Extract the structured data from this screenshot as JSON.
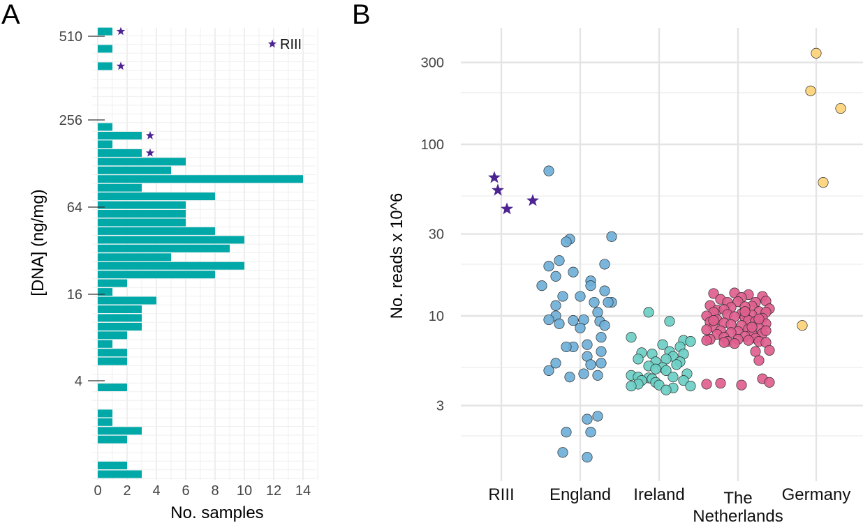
{
  "panels": {
    "a": "A",
    "b": "B"
  },
  "chart_data": [
    {
      "type": "bar",
      "orientation": "horizontal",
      "xlabel": "No. samples",
      "ylabel": "[DNA] (ng/mg)",
      "xlim": [
        0,
        15
      ],
      "x_ticks": [
        "0",
        "2",
        "4",
        "6",
        "8",
        "10",
        "12",
        "14"
      ],
      "y_ticks": [
        "4",
        "16",
        "64",
        "256",
        "510"
      ],
      "y_scale": "log2",
      "legend": {
        "label": "RIII",
        "symbol": "star",
        "color": "#4b2491",
        "placement": "top-right"
      },
      "bar_color": "#00a8a8",
      "bins": [
        {
          "rank": 0,
          "count": 3
        },
        {
          "rank": 1,
          "count": 2
        },
        {
          "rank": 4,
          "count": 2
        },
        {
          "rank": 5,
          "count": 3
        },
        {
          "rank": 6,
          "count": 1
        },
        {
          "rank": 7,
          "count": 1
        },
        {
          "rank": 10,
          "count": 2
        },
        {
          "rank": 13,
          "count": 2
        },
        {
          "rank": 14,
          "count": 2
        },
        {
          "rank": 15,
          "count": 1
        },
        {
          "rank": 16,
          "count": 2
        },
        {
          "rank": 17,
          "count": 3
        },
        {
          "rank": 18,
          "count": 3
        },
        {
          "rank": 19,
          "count": 3
        },
        {
          "rank": 20,
          "count": 4
        },
        {
          "rank": 21,
          "count": 1
        },
        {
          "rank": 22,
          "count": 2
        },
        {
          "rank": 23,
          "count": 8
        },
        {
          "rank": 24,
          "count": 10
        },
        {
          "rank": 25,
          "count": 5
        },
        {
          "rank": 26,
          "count": 9
        },
        {
          "rank": 27,
          "count": 10
        },
        {
          "rank": 28,
          "count": 8
        },
        {
          "rank": 29,
          "count": 6
        },
        {
          "rank": 30,
          "count": 6
        },
        {
          "rank": 31,
          "count": 6
        },
        {
          "rank": 32,
          "count": 8
        },
        {
          "rank": 33,
          "count": 3
        },
        {
          "rank": 34,
          "count": 14
        },
        {
          "rank": 35,
          "count": 5
        },
        {
          "rank": 36,
          "count": 6
        },
        {
          "rank": 37,
          "count": 3,
          "riii": true
        },
        {
          "rank": 38,
          "count": 1
        },
        {
          "rank": 39,
          "count": 3,
          "riii": true
        },
        {
          "rank": 40,
          "count": 1
        },
        {
          "rank": 47,
          "count": 1,
          "riii": true
        },
        {
          "rank": 49,
          "count": 1
        },
        {
          "rank": 51,
          "count": 1,
          "riii": true
        }
      ]
    },
    {
      "type": "scatter",
      "ylabel": "No. reads x 10^6",
      "y_scale": "log10",
      "y_ticks": [
        "3",
        "10",
        "30",
        "100",
        "300"
      ],
      "categories": [
        "RIII",
        "England",
        "Ireland",
        "The\nNetherlands",
        "Germany"
      ],
      "category_lines": [
        [
          "RIII"
        ],
        [
          "England"
        ],
        [
          "Ireland"
        ],
        [
          "The",
          "Netherlands"
        ],
        [
          "Germany"
        ]
      ],
      "series": [
        {
          "category": "RIII",
          "color": "#4b2491",
          "marker": "star",
          "points": [
            [
              -0.1,
              64
            ],
            [
              -0.05,
              54
            ],
            [
              0.08,
              42
            ],
            [
              0.45,
              47
            ]
          ]
        },
        {
          "category": "England",
          "color": "#6fb0d8",
          "marker": "circle",
          "points": [
            [
              -0.45,
              70
            ],
            [
              -0.15,
              28
            ],
            [
              0.45,
              29
            ],
            [
              -0.2,
              27
            ],
            [
              -0.3,
              21
            ],
            [
              0.35,
              20
            ],
            [
              -0.45,
              19.5
            ],
            [
              -0.1,
              18
            ],
            [
              -0.35,
              17
            ],
            [
              0.15,
              16
            ],
            [
              0.15,
              15
            ],
            [
              -0.55,
              15
            ],
            [
              0.35,
              14
            ],
            [
              -0.25,
              13
            ],
            [
              0.0,
              13
            ],
            [
              0.45,
              12
            ],
            [
              0.2,
              12
            ],
            [
              0.4,
              12
            ],
            [
              -0.35,
              11.5
            ],
            [
              0.25,
              10.5
            ],
            [
              -0.35,
              10
            ],
            [
              -0.45,
              9.5
            ],
            [
              0.05,
              9.5
            ],
            [
              -0.1,
              9.4
            ],
            [
              0.28,
              9.3
            ],
            [
              -0.3,
              9
            ],
            [
              0.35,
              8.8
            ],
            [
              0.0,
              8.5
            ],
            [
              0.3,
              7.5
            ],
            [
              0.1,
              6.8
            ],
            [
              -0.1,
              6.6
            ],
            [
              -0.2,
              6.6
            ],
            [
              0.3,
              6.2
            ],
            [
              0.1,
              5.8
            ],
            [
              0.3,
              5.3
            ],
            [
              -0.35,
              5.3
            ],
            [
              0.15,
              5.2
            ],
            [
              -0.45,
              4.8
            ],
            [
              0.05,
              4.6
            ],
            [
              0.25,
              4.5
            ],
            [
              -0.15,
              4.4
            ],
            [
              0.25,
              2.6
            ],
            [
              0.1,
              2.5
            ],
            [
              -0.2,
              2.1
            ],
            [
              0.15,
              2.1
            ],
            [
              -0.25,
              1.6
            ],
            [
              0.1,
              1.5
            ]
          ]
        },
        {
          "category": "Ireland",
          "color": "#6bcfc4",
          "marker": "circle",
          "points": [
            [
              -0.15,
              10.5
            ],
            [
              0.15,
              9.3
            ],
            [
              -0.4,
              7.5
            ],
            [
              0.35,
              7.2
            ],
            [
              0.45,
              7.1
            ],
            [
              0.05,
              6.8
            ],
            [
              0.3,
              6.6
            ],
            [
              -0.25,
              6.1
            ],
            [
              0.15,
              6.2
            ],
            [
              -0.1,
              6.0
            ],
            [
              0.35,
              6.0
            ],
            [
              0.2,
              5.8
            ],
            [
              -0.3,
              5.6
            ],
            [
              0.1,
              5.6
            ],
            [
              -0.05,
              5.4
            ],
            [
              0.3,
              5.4
            ],
            [
              0.25,
              5.2
            ],
            [
              -0.15,
              5.1
            ],
            [
              0.05,
              5.0
            ],
            [
              -0.05,
              4.9
            ],
            [
              0.1,
              4.8
            ],
            [
              0.4,
              4.6
            ],
            [
              -0.4,
              4.5
            ],
            [
              -0.3,
              4.4
            ],
            [
              -0.15,
              4.35
            ],
            [
              -0.1,
              4.3
            ],
            [
              0.2,
              4.4
            ],
            [
              -0.25,
              4.2
            ],
            [
              0.35,
              4.2
            ],
            [
              -0.05,
              4.1
            ],
            [
              -0.3,
              4.0
            ],
            [
              -0.4,
              3.9
            ],
            [
              0.0,
              3.95
            ],
            [
              0.45,
              3.9
            ],
            [
              0.2,
              3.8
            ],
            [
              0.1,
              3.7
            ]
          ]
        },
        {
          "category": "The\nNetherlands",
          "color": "#df5e8e",
          "marker": "circle",
          "points": [
            [
              -0.35,
              13.5
            ],
            [
              -0.05,
              13.6
            ],
            [
              0.15,
              13.3
            ],
            [
              0.35,
              13.0
            ],
            [
              -0.25,
              12.5
            ],
            [
              0.05,
              12.8
            ],
            [
              0.4,
              12.2
            ],
            [
              -0.15,
              12.0
            ],
            [
              0.0,
              12.1
            ],
            [
              0.25,
              12.0
            ],
            [
              -0.4,
              11.5
            ],
            [
              0.2,
              11.4
            ],
            [
              -0.1,
              11.2
            ],
            [
              0.1,
              11.3
            ],
            [
              0.45,
              11.0
            ],
            [
              -0.3,
              10.8
            ],
            [
              -0.2,
              10.9
            ],
            [
              0.3,
              10.6
            ],
            [
              -0.35,
              10.5
            ],
            [
              0.05,
              10.3
            ],
            [
              0.4,
              10.5
            ],
            [
              -0.15,
              10.2
            ],
            [
              0.2,
              10.1
            ],
            [
              -0.45,
              10.0
            ],
            [
              0.1,
              9.8
            ],
            [
              -0.05,
              9.9
            ],
            [
              0.35,
              9.7
            ],
            [
              -0.3,
              9.5
            ],
            [
              0.15,
              9.4
            ],
            [
              -0.4,
              9.2
            ],
            [
              0.25,
              9.3
            ],
            [
              -0.2,
              9.1
            ],
            [
              0.4,
              9.0
            ],
            [
              -0.1,
              8.9
            ],
            [
              0.05,
              8.8
            ],
            [
              -0.35,
              8.6
            ],
            [
              0.3,
              8.5
            ],
            [
              -0.45,
              8.3
            ],
            [
              0.15,
              8.4
            ],
            [
              -0.25,
              8.2
            ],
            [
              0.0,
              8.1
            ],
            [
              -0.1,
              8.0
            ],
            [
              0.2,
              7.9
            ],
            [
              0.35,
              7.9
            ],
            [
              -0.3,
              7.8
            ],
            [
              0.1,
              7.6
            ],
            [
              -0.2,
              7.5
            ],
            [
              0.25,
              7.4
            ],
            [
              -0.4,
              7.3
            ],
            [
              0.0,
              7.3
            ],
            [
              0.15,
              7.2
            ],
            [
              -0.45,
              7.2
            ],
            [
              -0.15,
              7.1
            ],
            [
              0.3,
              7.1
            ],
            [
              0.4,
              7.0
            ],
            [
              -0.05,
              6.9
            ],
            [
              0.45,
              6.3
            ],
            [
              0.25,
              6.2
            ],
            [
              0.3,
              5.5
            ],
            [
              0.35,
              4.3
            ],
            [
              -0.45,
              4.0
            ],
            [
              -0.25,
              4.05
            ],
            [
              0.05,
              3.95
            ],
            [
              0.45,
              4.1
            ],
            [
              0.1,
              10.6
            ],
            [
              0.3,
              9.6
            ],
            [
              0.2,
              8.6
            ],
            [
              -0.35,
              9.4
            ],
            [
              0.4,
              8.2
            ],
            [
              -0.2,
              7.0
            ]
          ]
        },
        {
          "category": "Germany",
          "color": "#fdd27a",
          "marker": "circle",
          "points": [
            [
              0.0,
              340
            ],
            [
              -0.08,
              205
            ],
            [
              0.35,
              162
            ],
            [
              0.1,
              60
            ],
            [
              -0.2,
              8.8
            ]
          ]
        }
      ]
    }
  ]
}
